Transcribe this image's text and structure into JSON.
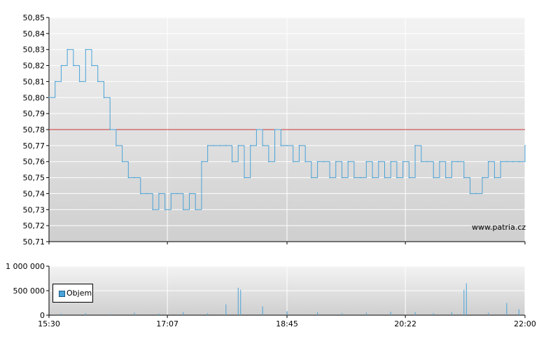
{
  "chart_data": [
    {
      "type": "line",
      "ylim": [
        50.71,
        50.85
      ],
      "y_ticks": [
        "50,85",
        "50,84",
        "50,83",
        "50,82",
        "50,81",
        "50,80",
        "50,79",
        "50,78",
        "50,77",
        "50,76",
        "50,75",
        "50,74",
        "50,73",
        "50,72",
        "50,71"
      ],
      "x_ticks": [
        "15:30",
        "17:07",
        "18:45",
        "20:22",
        "22:00"
      ],
      "reference_line": {
        "value": 50.78,
        "color": "#cc3333"
      },
      "series": [
        {
          "color": "#4aa3d8",
          "x": [
            "15:30",
            "15:35",
            "15:40",
            "15:45",
            "15:50",
            "15:55",
            "16:00",
            "16:05",
            "16:10",
            "16:15",
            "16:20",
            "16:25",
            "16:30",
            "16:35",
            "16:40",
            "16:45",
            "16:50",
            "16:55",
            "17:00",
            "17:05",
            "17:10",
            "17:15",
            "17:20",
            "17:25",
            "17:30",
            "17:35",
            "17:40",
            "17:45",
            "17:50",
            "17:55",
            "18:00",
            "18:05",
            "18:10",
            "18:15",
            "18:20",
            "18:25",
            "18:30",
            "18:35",
            "18:40",
            "18:45",
            "18:50",
            "18:55",
            "19:00",
            "19:05",
            "19:10",
            "19:15",
            "19:20",
            "19:25",
            "19:30",
            "19:35",
            "19:40",
            "19:45",
            "19:50",
            "19:55",
            "20:00",
            "20:05",
            "20:10",
            "20:15",
            "20:20",
            "20:25",
            "20:30",
            "20:35",
            "20:40",
            "20:45",
            "20:50",
            "20:55",
            "21:00",
            "21:05",
            "21:10",
            "21:15",
            "21:20",
            "21:25",
            "21:30",
            "21:35",
            "21:40",
            "21:45",
            "21:50",
            "21:55",
            "22:00"
          ],
          "values": [
            50.8,
            50.81,
            50.82,
            50.83,
            50.82,
            50.81,
            50.83,
            50.82,
            50.81,
            50.8,
            50.78,
            50.77,
            50.76,
            50.75,
            50.75,
            50.74,
            50.74,
            50.73,
            50.74,
            50.73,
            50.74,
            50.74,
            50.73,
            50.74,
            50.73,
            50.76,
            50.77,
            50.77,
            50.77,
            50.77,
            50.76,
            50.77,
            50.75,
            50.77,
            50.78,
            50.77,
            50.76,
            50.78,
            50.77,
            50.77,
            50.76,
            50.77,
            50.76,
            50.75,
            50.76,
            50.76,
            50.75,
            50.76,
            50.75,
            50.76,
            50.75,
            50.75,
            50.76,
            50.75,
            50.76,
            50.75,
            50.76,
            50.75,
            50.76,
            50.75,
            50.77,
            50.76,
            50.76,
            50.75,
            50.76,
            50.75,
            50.76,
            50.76,
            50.75,
            50.74,
            50.74,
            50.75,
            50.76,
            50.75,
            50.76,
            50.76,
            50.76,
            50.76,
            50.77
          ]
        }
      ]
    },
    {
      "type": "bar",
      "ylim": [
        0,
        1000000
      ],
      "y_ticks": [
        "1 000 000",
        "500 000",
        "0"
      ],
      "x_ticks": [
        "15:30",
        "17:07",
        "18:45",
        "20:22",
        "22:00"
      ],
      "legend": {
        "label": "Objem",
        "placement": "left",
        "color": "#4aa3d8"
      },
      "series": [
        {
          "name": "Objem",
          "color": "#4aa3d8",
          "x": [
            "15:40",
            "16:00",
            "16:20",
            "16:40",
            "17:00",
            "17:20",
            "17:40",
            "17:55",
            "18:05",
            "18:07",
            "18:25",
            "18:45",
            "19:10",
            "19:30",
            "19:50",
            "20:10",
            "20:30",
            "20:45",
            "21:00",
            "21:10",
            "21:12",
            "21:30",
            "21:45",
            "21:55"
          ],
          "values": [
            30000,
            40000,
            20000,
            50000,
            30000,
            60000,
            40000,
            220000,
            560000,
            520000,
            180000,
            80000,
            60000,
            40000,
            50000,
            70000,
            60000,
            40000,
            60000,
            520000,
            650000,
            50000,
            250000,
            120000
          ]
        }
      ]
    }
  ],
  "watermark": "www.patria.cz"
}
